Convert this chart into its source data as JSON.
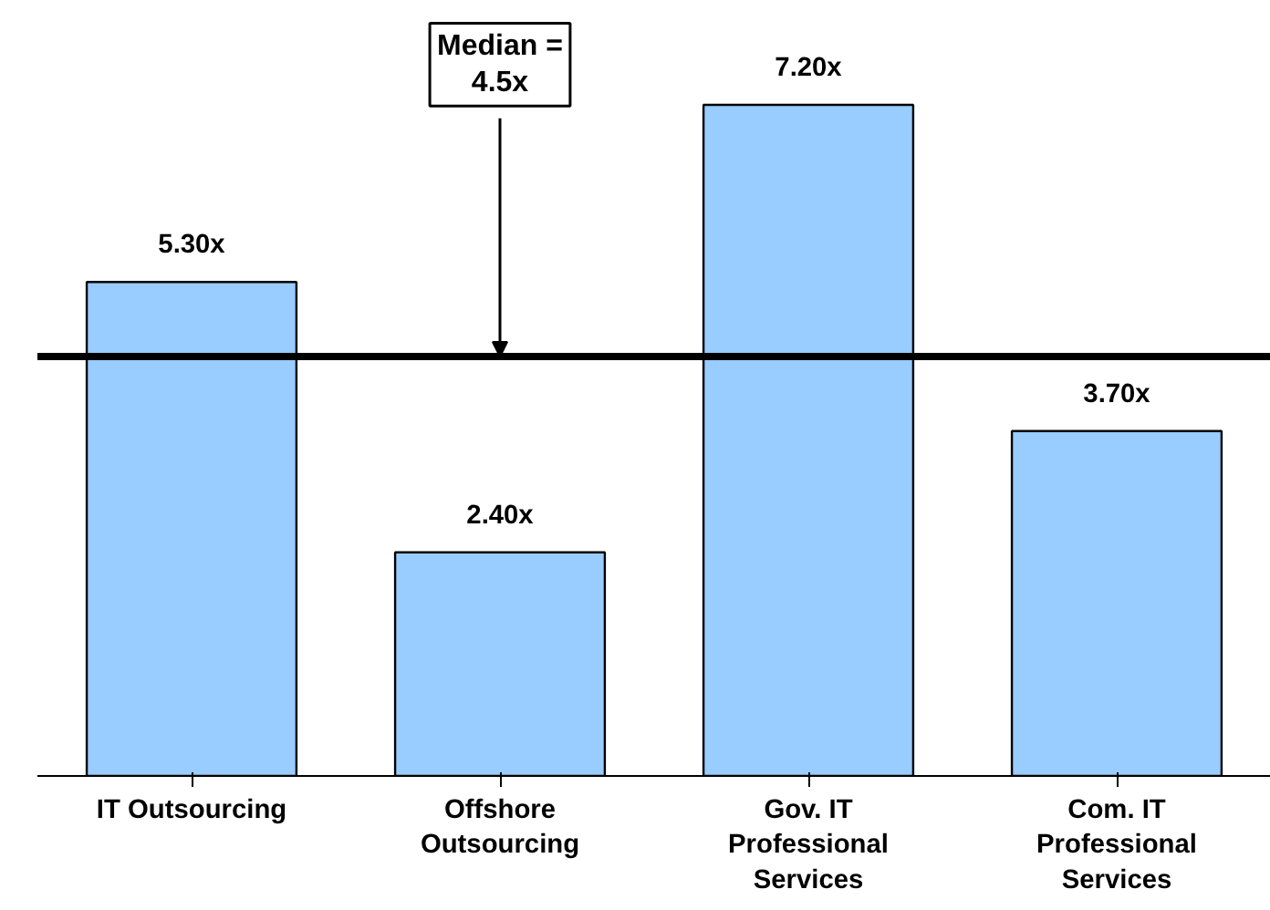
{
  "chart_data": {
    "type": "bar",
    "categories": [
      "IT Outsourcing",
      "Offshore Outsourcing",
      "Gov. IT Professional Services",
      "Com. IT Professional Services"
    ],
    "values": [
      5.3,
      2.4,
      7.2,
      3.7
    ],
    "value_labels": [
      "5.30x",
      "2.40x",
      "7.20x",
      "3.70x"
    ],
    "color": "#99ccff",
    "ref_lines": [
      {
        "axis": "y",
        "value": 4.5,
        "label": "Median = 4.5x",
        "color": "#000000"
      }
    ],
    "grid": false
  }
}
